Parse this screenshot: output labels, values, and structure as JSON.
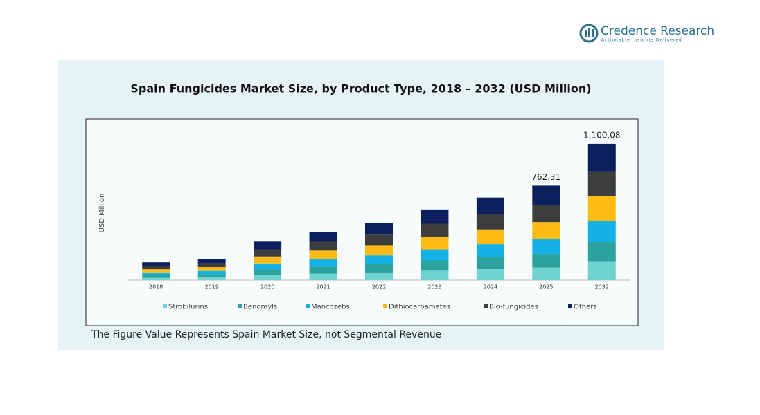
{
  "brand": {
    "name": "Credence Research",
    "tagline": "Actionable Insights Delivered"
  },
  "chart_data": {
    "type": "stacked-bar",
    "title": "Spain Fungicides Market Size, by Product Type, 2018 – 2032 (USD Million)",
    "y_label": "USD Million",
    "categories": [
      "2018",
      "2019",
      "2020",
      "2021",
      "2022",
      "2023",
      "2024",
      "2025",
      "2032"
    ],
    "series": [
      {
        "name": "Strobilurins",
        "color": "#6fd3cf",
        "values": [
          19.3,
          23.0,
          41.7,
          52.0,
          61.6,
          76.4,
          89.2,
          102.1,
          147.4
        ]
      },
      {
        "name": "Benomyls",
        "color": "#2ba29d",
        "values": [
          20.9,
          24.9,
          45.1,
          56.3,
          66.7,
          82.7,
          96.6,
          110.5,
          159.5
        ]
      },
      {
        "name": "Mancozebs",
        "color": "#14b1e7",
        "values": [
          22.5,
          26.8,
          48.5,
          60.5,
          71.8,
          88.9,
          103.9,
          118.9,
          171.6
        ]
      },
      {
        "name": "Dithiocarbamates",
        "color": "#fdbb14",
        "values": [
          25.8,
          30.8,
          55.7,
          69.5,
          82.3,
          102.0,
          119.2,
          136.5,
          196.9
        ]
      },
      {
        "name": "Bio-fungicides",
        "color": "#3d3d3d",
        "values": [
          26.5,
          31.6,
          57.2,
          71.4,
          84.6,
          104.9,
          122.5,
          140.3,
          202.4
        ]
      },
      {
        "name": "Others",
        "color": "#0d1f5d",
        "values": [
          29.0,
          34.9,
          62.8,
          78.3,
          93.0,
          115.1,
          134.6,
          154.01,
          222.28
        ]
      }
    ],
    "totals": [
      null,
      null,
      null,
      null,
      null,
      null,
      null,
      762.31,
      1100.08
    ],
    "total_labels": [
      null,
      null,
      null,
      null,
      null,
      null,
      null,
      "762.31",
      "1,100.08"
    ],
    "ylim": [
      0,
      1200
    ],
    "legend": "bottom",
    "note": "The Figure Value Represents Spain Market Size, not Segmental Revenue"
  }
}
